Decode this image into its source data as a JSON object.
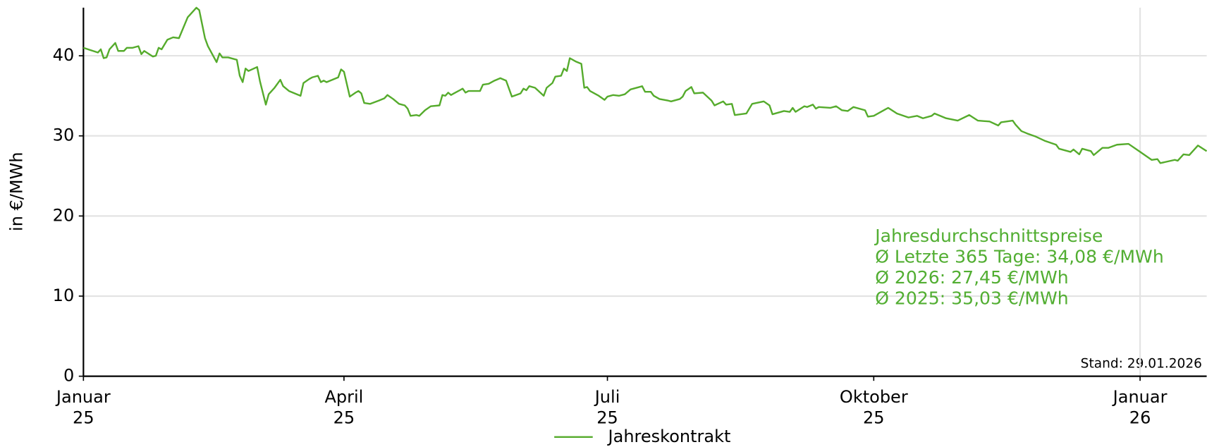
{
  "chart_data": {
    "type": "line",
    "y_label": "in €/MWh",
    "annotation": [
      "Jahresdurchschnittspreise",
      "Ø Letzte 365 Tage: 34,08 €/MWh",
      "Ø 2026: 27,45 €/MWh",
      "Ø 2025: 35,03 €/MWh"
    ],
    "note": "Stand: 29.01.2026",
    "xlim": [
      "2025-01-01",
      "2026-01-24"
    ],
    "xticks": [
      {
        "value": "2025-01-01",
        "label": [
          "Januar",
          "25"
        ]
      },
      {
        "value": "2025-04-01",
        "label": [
          "April",
          "25"
        ]
      },
      {
        "value": "2025-07-01",
        "label": [
          "Juli",
          "25"
        ]
      },
      {
        "value": "2025-10-01",
        "label": [
          "Oktober",
          "25"
        ]
      },
      {
        "value": "2026-01-01",
        "label": [
          "Januar",
          "26"
        ]
      }
    ],
    "ylim": [
      0,
      46
    ],
    "yticks": [
      0,
      10,
      20,
      30,
      40
    ],
    "grid": true,
    "x": [
      "2025-01-01",
      "2025-01-06",
      "2025-01-07",
      "2025-01-08",
      "2025-01-09",
      "2025-01-10",
      "2025-01-12",
      "2025-01-13",
      "2025-01-15",
      "2025-01-16",
      "2025-01-18",
      "2025-01-20",
      "2025-01-21",
      "2025-01-22",
      "2025-01-25",
      "2025-01-26",
      "2025-01-27",
      "2025-01-28",
      "2025-01-30",
      "2025-02-01",
      "2025-02-03",
      "2025-02-06",
      "2025-02-09",
      "2025-02-10",
      "2025-02-12",
      "2025-02-13",
      "2025-02-16",
      "2025-02-17",
      "2025-02-18",
      "2025-02-20",
      "2025-02-23",
      "2025-02-24",
      "2025-02-25",
      "2025-02-26",
      "2025-02-27",
      "2025-03-02",
      "2025-03-03",
      "2025-03-05",
      "2025-03-06",
      "2025-03-08",
      "2025-03-10",
      "2025-03-11",
      "2025-03-13",
      "2025-03-17",
      "2025-03-18",
      "2025-03-20",
      "2025-03-21",
      "2025-03-23",
      "2025-03-24",
      "2025-03-25",
      "2025-03-26",
      "2025-03-30",
      "2025-03-31",
      "2025-04-01",
      "2025-04-03",
      "2025-04-05",
      "2025-04-06",
      "2025-04-07",
      "2025-04-08",
      "2025-04-10",
      "2025-04-13",
      "2025-04-15",
      "2025-04-16",
      "2025-04-18",
      "2025-04-20",
      "2025-04-22",
      "2025-04-23",
      "2025-04-24",
      "2025-04-26",
      "2025-04-27",
      "2025-04-29",
      "2025-05-01",
      "2025-05-04",
      "2025-05-05",
      "2025-05-06",
      "2025-05-07",
      "2025-05-08",
      "2025-05-09",
      "2025-05-11",
      "2025-05-12",
      "2025-05-13",
      "2025-05-14",
      "2025-05-18",
      "2025-05-19",
      "2025-05-21",
      "2025-05-23",
      "2025-05-25",
      "2025-05-27",
      "2025-05-29",
      "2025-06-01",
      "2025-06-02",
      "2025-06-03",
      "2025-06-04",
      "2025-06-06",
      "2025-06-09",
      "2025-06-10",
      "2025-06-12",
      "2025-06-13",
      "2025-06-15",
      "2025-06-16",
      "2025-06-17",
      "2025-06-18",
      "2025-06-20",
      "2025-06-22",
      "2025-06-23",
      "2025-06-24",
      "2025-06-25",
      "2025-06-28",
      "2025-06-30",
      "2025-07-01",
      "2025-07-03",
      "2025-07-05",
      "2025-07-07",
      "2025-07-09",
      "2025-07-12",
      "2025-07-13",
      "2025-07-14",
      "2025-07-16",
      "2025-07-17",
      "2025-07-19",
      "2025-07-22",
      "2025-07-23",
      "2025-07-26",
      "2025-07-27",
      "2025-07-28",
      "2025-07-30",
      "2025-07-31",
      "2025-08-03",
      "2025-08-06",
      "2025-08-07",
      "2025-08-10",
      "2025-08-11",
      "2025-08-13",
      "2025-08-14",
      "2025-08-18",
      "2025-08-20",
      "2025-08-24",
      "2025-08-26",
      "2025-08-27",
      "2025-08-31",
      "2025-09-02",
      "2025-09-03",
      "2025-09-04",
      "2025-09-07",
      "2025-09-08",
      "2025-09-10",
      "2025-09-11",
      "2025-09-12",
      "2025-09-16",
      "2025-09-18",
      "2025-09-20",
      "2025-09-22",
      "2025-09-24",
      "2025-09-28",
      "2025-09-29",
      "2025-10-01",
      "2025-10-05",
      "2025-10-06",
      "2025-10-09",
      "2025-10-13",
      "2025-10-16",
      "2025-10-18",
      "2025-10-21",
      "2025-10-22",
      "2025-10-26",
      "2025-10-30",
      "2025-11-03",
      "2025-11-06",
      "2025-11-10",
      "2025-11-13",
      "2025-11-14",
      "2025-11-18",
      "2025-11-19",
      "2025-11-21",
      "2025-11-23",
      "2025-11-26",
      "2025-11-29",
      "2025-12-03",
      "2025-12-04",
      "2025-12-08",
      "2025-12-09",
      "2025-12-11",
      "2025-12-12",
      "2025-12-15",
      "2025-12-16",
      "2025-12-19",
      "2025-12-21",
      "2025-12-24",
      "2025-12-28",
      "2026-01-01",
      "2026-01-05",
      "2026-01-07",
      "2026-01-08",
      "2026-01-13",
      "2026-01-14",
      "2026-01-16",
      "2026-01-18",
      "2026-01-21",
      "2026-01-24"
    ],
    "series": [
      {
        "name": "Jahreskontrakt",
        "color": "#55ab2c",
        "values": [
          41.0,
          40.4,
          40.8,
          39.7,
          39.8,
          40.8,
          41.6,
          40.6,
          40.6,
          41.0,
          41.0,
          41.2,
          40.2,
          40.6,
          39.9,
          40.0,
          41.0,
          40.8,
          42.0,
          42.3,
          42.2,
          44.8,
          46.0,
          45.7,
          42.2,
          41.2,
          39.2,
          40.3,
          39.8,
          39.8,
          39.5,
          37.5,
          36.7,
          38.4,
          38.1,
          38.6,
          36.8,
          33.9,
          35.2,
          36.0,
          37.0,
          36.2,
          35.6,
          35.0,
          36.6,
          37.1,
          37.3,
          37.5,
          36.7,
          36.9,
          36.7,
          37.3,
          38.3,
          38.0,
          34.9,
          35.4,
          35.6,
          35.3,
          34.1,
          34.0,
          34.4,
          34.7,
          35.1,
          34.6,
          34.0,
          33.8,
          33.4,
          32.5,
          32.6,
          32.5,
          33.2,
          33.7,
          33.8,
          35.1,
          35.0,
          35.4,
          35.1,
          35.3,
          35.7,
          35.9,
          35.4,
          35.6,
          35.6,
          36.4,
          36.5,
          36.9,
          37.2,
          36.9,
          34.9,
          35.3,
          35.9,
          35.7,
          36.2,
          36.0,
          35.0,
          36.0,
          36.6,
          37.4,
          37.5,
          38.4,
          38.1,
          39.7,
          39.3,
          39.0,
          36.0,
          36.1,
          35.6,
          35.0,
          34.5,
          34.9,
          35.1,
          35.0,
          35.2,
          35.8,
          36.1,
          36.2,
          35.5,
          35.5,
          35.0,
          34.6,
          34.4,
          34.3,
          34.6,
          34.9,
          35.6,
          36.1,
          35.3,
          35.4,
          34.4,
          33.8,
          34.3,
          33.9,
          34.0,
          32.6,
          32.8,
          34.0,
          34.3,
          33.8,
          32.7,
          33.1,
          33.0,
          33.5,
          33.0,
          33.7,
          33.6,
          33.9,
          33.4,
          33.6,
          33.5,
          33.7,
          33.2,
          33.1,
          33.6,
          33.2,
          32.4,
          32.5,
          33.3,
          33.5,
          32.8,
          32.3,
          32.5,
          32.2,
          32.5,
          32.8,
          32.2,
          31.9,
          32.6,
          31.9,
          31.8,
          31.3,
          31.7,
          31.9,
          31.4,
          30.6,
          30.3,
          29.9,
          29.4,
          28.9,
          28.4,
          28.0,
          28.3,
          27.7,
          28.4,
          28.1,
          27.6,
          28.5,
          28.5,
          28.9,
          29.0,
          28.0,
          27.0,
          27.1,
          26.6,
          27.0,
          26.9,
          27.7,
          27.6,
          28.8,
          28.1
        ]
      }
    ]
  }
}
